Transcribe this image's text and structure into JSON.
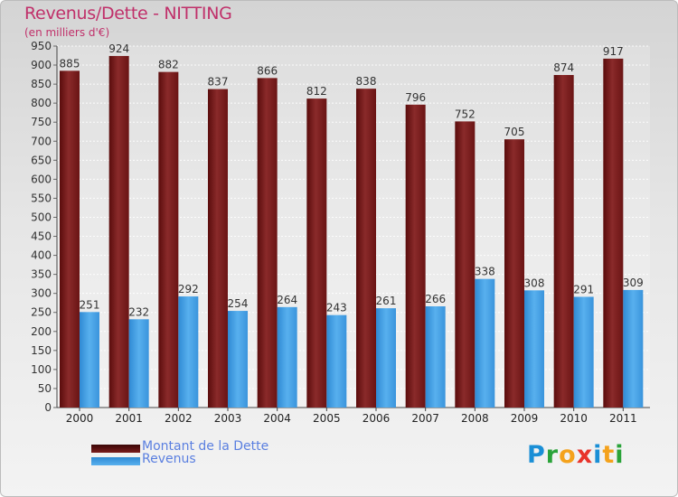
{
  "chart_data": {
    "type": "bar",
    "title": "Revenus/Dette - NITTING",
    "subtitle": "(en milliers d'€)",
    "xlabel": "",
    "ylabel": "",
    "categories": [
      "2000",
      "2001",
      "2002",
      "2003",
      "2004",
      "2005",
      "2006",
      "2007",
      "2008",
      "2009",
      "2010",
      "2011"
    ],
    "series": [
      {
        "name": "Montant de la Dette",
        "color": "#7a1c1c",
        "values": [
          885,
          924,
          882,
          837,
          866,
          812,
          838,
          796,
          752,
          705,
          874,
          917
        ]
      },
      {
        "name": "Revenus",
        "color": "#3f9be0",
        "values": [
          251,
          232,
          292,
          254,
          264,
          243,
          261,
          266,
          338,
          308,
          291,
          309
        ]
      }
    ],
    "ylim": [
      0,
      950
    ],
    "ytick_step": 50,
    "grid": true,
    "legend_position": "bottom-left"
  },
  "branding": {
    "logo_letters": [
      "P",
      "r",
      "o",
      "x",
      "i",
      "t",
      "i"
    ],
    "logo_colors": [
      "#1a8fd6",
      "#2aa339",
      "#f4a21c",
      "#e8332a",
      "#1a8fd6",
      "#f4a21c",
      "#2aa339"
    ]
  }
}
